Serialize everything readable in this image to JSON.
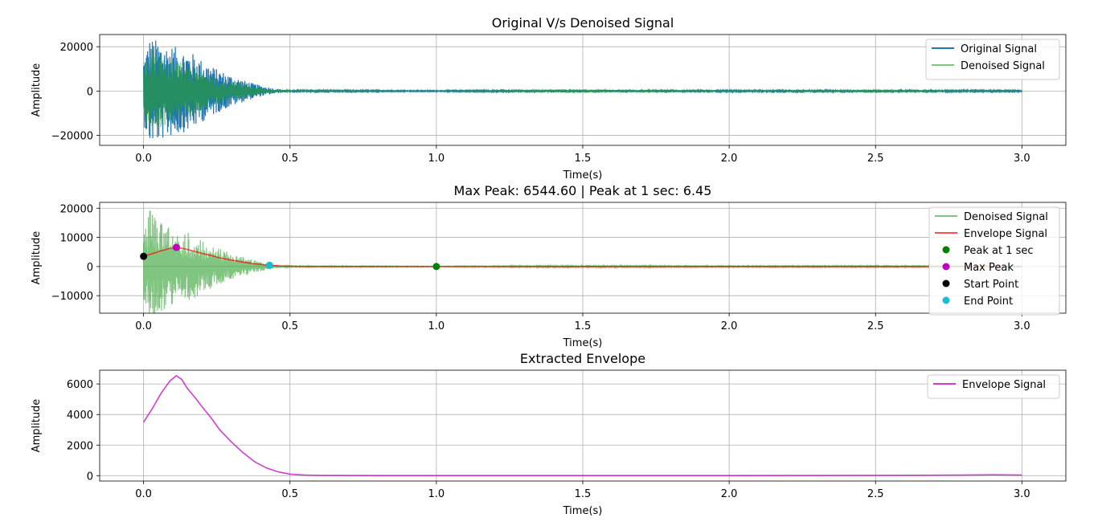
{
  "chart_data": [
    {
      "type": "line",
      "title": "Original V/s Denoised Signal",
      "xlabel": "Time(s)",
      "ylabel": "Amplitude",
      "xlim": [
        -0.15,
        3.15
      ],
      "ylim": [
        -24500,
        25500
      ],
      "xticks": [
        0.0,
        0.5,
        1.0,
        1.5,
        2.0,
        2.5,
        3.0
      ],
      "xtick_labels": [
        "0.0",
        "0.5",
        "1.0",
        "1.5",
        "2.0",
        "2.5",
        "3.0"
      ],
      "yticks": [
        -20000,
        0,
        20000
      ],
      "ytick_labels": [
        "−20000",
        "0",
        "20000"
      ],
      "grid": true,
      "legend_position": "top-right",
      "series": [
        {
          "name": "Original Signal",
          "kind": "signal",
          "color": "#1f77b4",
          "alpha": 1.0,
          "x": [
            0,
            0.02,
            0.05,
            0.08,
            0.11,
            0.14,
            0.17,
            0.2,
            0.25,
            0.3,
            0.35,
            0.4,
            0.45,
            0.5,
            1.0,
            1.3,
            1.4,
            1.5,
            1.6,
            2.0,
            2.4,
            2.5,
            2.6,
            3.0
          ],
          "envelope": [
            15000,
            24000,
            23000,
            21000,
            20000,
            18500,
            17000,
            14000,
            10000,
            7000,
            4500,
            2500,
            1100,
            400,
            250,
            450,
            700,
            700,
            550,
            400,
            450,
            600,
            450,
            300
          ]
        },
        {
          "name": "Denoised Signal",
          "kind": "signal",
          "color": "#2ca02c",
          "alpha": 0.6,
          "x": [
            0,
            0.02,
            0.05,
            0.08,
            0.11,
            0.14,
            0.17,
            0.2,
            0.25,
            0.3,
            0.35,
            0.4,
            0.45,
            0.5,
            1.0,
            1.3,
            1.4,
            1.5,
            1.6,
            2.0,
            2.4,
            2.5,
            2.6,
            3.0
          ],
          "envelope": [
            12000,
            21000,
            19000,
            16000,
            14000,
            12500,
            11000,
            9000,
            6500,
            4500,
            3000,
            1600,
            600,
            200,
            120,
            250,
            400,
            400,
            300,
            200,
            250,
            350,
            250,
            150
          ]
        }
      ]
    },
    {
      "type": "line",
      "title": "Max Peak: 6544.60 | Peak at 1 sec: 6.45",
      "xlabel": "Time(s)",
      "ylabel": "Amplitude",
      "xlim": [
        -0.15,
        3.15
      ],
      "ylim": [
        -16000,
        22000
      ],
      "xticks": [
        0.0,
        0.5,
        1.0,
        1.5,
        2.0,
        2.5,
        3.0
      ],
      "xtick_labels": [
        "0.0",
        "0.5",
        "1.0",
        "1.5",
        "2.0",
        "2.5",
        "3.0"
      ],
      "yticks": [
        -10000,
        0,
        10000,
        20000
      ],
      "ytick_labels": [
        "−10000",
        "0",
        "10000",
        "20000"
      ],
      "grid": true,
      "legend_position": "top-right",
      "series": [
        {
          "name": "Denoised Signal",
          "kind": "signal",
          "color": "#2ca02c",
          "alpha": 0.6,
          "x": [
            0,
            0.02,
            0.05,
            0.08,
            0.11,
            0.14,
            0.17,
            0.2,
            0.25,
            0.3,
            0.35,
            0.4,
            0.45,
            0.5,
            1.0,
            1.5,
            2.0,
            2.5,
            3.0
          ],
          "envelope": [
            13000,
            20500,
            16000,
            14000,
            13000,
            12000,
            11000,
            9000,
            6500,
            4500,
            3000,
            1600,
            600,
            200,
            120,
            300,
            200,
            250,
            150
          ]
        },
        {
          "name": "Envelope Signal",
          "kind": "line",
          "color": "#ff0000",
          "alpha": 0.7,
          "x": [
            0,
            0.03,
            0.06,
            0.09,
            0.112,
            0.14,
            0.17,
            0.2,
            0.23,
            0.26,
            0.3,
            0.34,
            0.38,
            0.42,
            0.46,
            0.5,
            0.55,
            0.6,
            0.8,
            1.0,
            1.5,
            2.0,
            2.5,
            2.8,
            2.9,
            3.0
          ],
          "y": [
            3500,
            4400,
            5400,
            6200,
            6544.6,
            6100,
            5300,
            4500,
            3800,
            3000,
            2200,
            1500,
            900,
            500,
            250,
            100,
            40,
            20,
            10,
            6.45,
            10,
            10,
            20,
            40,
            60,
            40
          ]
        },
        {
          "name": "Peak at 1 sec",
          "kind": "point",
          "color": "#008000",
          "x": [
            1.0
          ],
          "y": [
            6.45
          ]
        },
        {
          "name": "Max Peak",
          "kind": "point",
          "color": "#bf00bf",
          "x": [
            0.112
          ],
          "y": [
            6544.6
          ]
        },
        {
          "name": "Start Point",
          "kind": "point",
          "color": "#000000",
          "x": [
            0.0
          ],
          "y": [
            3500
          ]
        },
        {
          "name": "End Point",
          "kind": "point",
          "color": "#17becf",
          "x": [
            0.43
          ],
          "y": [
            450
          ]
        }
      ]
    },
    {
      "type": "line",
      "title": "Extracted Envelope",
      "xlabel": "Time(s)",
      "ylabel": "Amplitude",
      "xlim": [
        -0.15,
        3.15
      ],
      "ylim": [
        -350,
        6900
      ],
      "xticks": [
        0.0,
        0.5,
        1.0,
        1.5,
        2.0,
        2.5,
        3.0
      ],
      "xtick_labels": [
        "0.0",
        "0.5",
        "1.0",
        "1.5",
        "2.0",
        "2.5",
        "3.0"
      ],
      "yticks": [
        0,
        2000,
        4000,
        6000
      ],
      "ytick_labels": [
        "0",
        "2000",
        "4000",
        "6000"
      ],
      "grid": true,
      "legend_position": "top-right",
      "series": [
        {
          "name": "Envelope Signal",
          "kind": "line",
          "color": "#bf00bf",
          "alpha": 0.75,
          "x": [
            0,
            0.03,
            0.06,
            0.09,
            0.112,
            0.13,
            0.15,
            0.18,
            0.2,
            0.23,
            0.26,
            0.3,
            0.34,
            0.38,
            0.42,
            0.46,
            0.5,
            0.55,
            0.6,
            0.8,
            1.0,
            1.5,
            2.0,
            2.5,
            2.8,
            2.9,
            3.0
          ],
          "y": [
            3500,
            4400,
            5400,
            6200,
            6544.6,
            6300,
            5700,
            5000,
            4500,
            3800,
            3000,
            2200,
            1500,
            900,
            500,
            250,
            100,
            40,
            20,
            10,
            6.45,
            10,
            10,
            20,
            40,
            60,
            40
          ]
        }
      ]
    }
  ]
}
